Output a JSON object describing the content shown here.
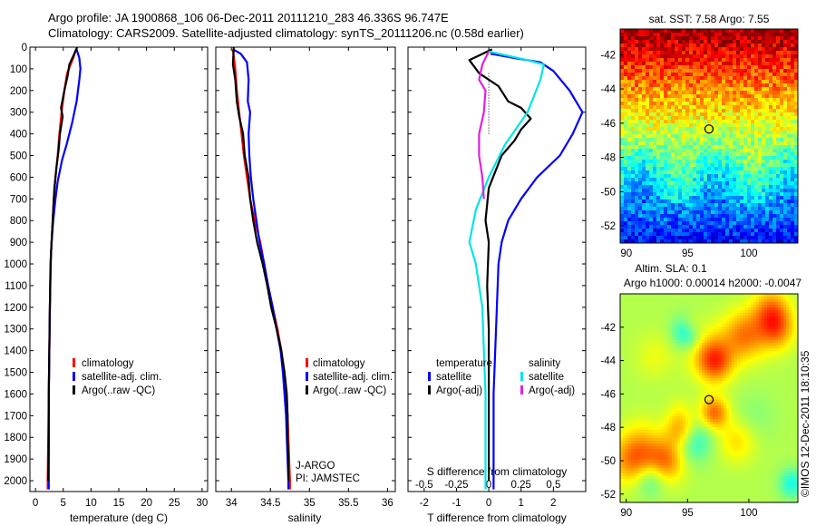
{
  "title_line1": "Argo profile: JA 1900868_106 06-Dec-2011 20111210_283 46.336S 96.747E",
  "title_line2": "Climatology: CARS2009. Satellite-adjusted climatology: synTS_20111206.nc (0.58d earlier)",
  "credit": "©IMOS 12-Dec-2011 18:10:35",
  "colors": {
    "climatology": "#ff0000",
    "satellite": "#0000ff",
    "argo": "#000000",
    "sal_satellite": "#00e5e5",
    "sal_argo": "#e020e0"
  },
  "chart_data": [
    {
      "type": "line",
      "name": "temperature-profile",
      "xlabel": "temperature (deg C)",
      "xlim": [
        -1,
        31
      ],
      "ylim": [
        0,
        2050
      ],
      "y_reversed": true,
      "xticks": [
        0,
        5,
        10,
        15,
        20,
        25,
        30
      ],
      "yticks": [
        0,
        100,
        200,
        300,
        400,
        500,
        600,
        700,
        800,
        900,
        1000,
        1100,
        1200,
        1300,
        1400,
        1500,
        1600,
        1700,
        1800,
        1900,
        2000
      ],
      "legend": [
        "climatology",
        "satellite-adj. clim.",
        "Argo(..raw -QC)"
      ],
      "series": [
        {
          "name": "climatology",
          "color": "#ff0000",
          "points": [
            [
              7.3,
              10
            ],
            [
              6.8,
              50
            ],
            [
              5.7,
              120
            ],
            [
              5.2,
              200
            ],
            [
              4.7,
              300
            ],
            [
              4.3,
              400
            ],
            [
              4.0,
              500
            ],
            [
              3.6,
              600
            ],
            [
              3.3,
              700
            ],
            [
              3.1,
              800
            ],
            [
              2.9,
              900
            ],
            [
              2.7,
              1000
            ],
            [
              2.6,
              1200
            ],
            [
              2.5,
              1400
            ],
            [
              2.4,
              1600
            ],
            [
              2.3,
              1800
            ],
            [
              2.2,
              2000
            ],
            [
              2.2,
              2040
            ]
          ]
        },
        {
          "name": "satellite-adj. clim.",
          "color": "#0000ff",
          "points": [
            [
              7.4,
              10
            ],
            [
              7.9,
              50
            ],
            [
              8.1,
              100
            ],
            [
              7.9,
              150
            ],
            [
              7.4,
              250
            ],
            [
              6.6,
              350
            ],
            [
              5.6,
              450
            ],
            [
              4.8,
              520
            ],
            [
              4.0,
              620
            ],
            [
              3.6,
              700
            ],
            [
              3.2,
              800
            ],
            [
              2.9,
              900
            ],
            [
              2.7,
              1000
            ],
            [
              2.6,
              1200
            ],
            [
              2.5,
              1400
            ],
            [
              2.4,
              1600
            ],
            [
              2.4,
              1800
            ],
            [
              2.4,
              2000
            ],
            [
              2.4,
              2040
            ]
          ]
        },
        {
          "name": "Argo(..raw -QC)",
          "color": "#000000",
          "points": [
            [
              7.5,
              0
            ],
            [
              7.0,
              30
            ],
            [
              6.1,
              80
            ],
            [
              5.8,
              130
            ],
            [
              5.2,
              200
            ],
            [
              4.6,
              280
            ],
            [
              4.9,
              320
            ],
            [
              4.4,
              400
            ],
            [
              4.2,
              470
            ],
            [
              3.8,
              550
            ],
            [
              3.4,
              650
            ],
            [
              3.2,
              750
            ],
            [
              3.0,
              850
            ],
            [
              2.8,
              950
            ],
            [
              2.7,
              1050
            ],
            [
              2.6,
              1200
            ],
            [
              2.5,
              1400
            ],
            [
              2.4,
              1600
            ],
            [
              2.4,
              1800
            ],
            [
              2.3,
              2000
            ]
          ]
        }
      ]
    },
    {
      "type": "line",
      "name": "salinity-profile",
      "xlabel": "salinity",
      "xlim": [
        33.8,
        36.1
      ],
      "ylim": [
        0,
        2050
      ],
      "y_reversed": true,
      "xticks": [
        34,
        34.5,
        35,
        35.5,
        36
      ],
      "legend": [
        "climatology",
        "satellite-adj. clim.",
        "Argo(..raw -QC)"
      ],
      "annotation": [
        "J-ARGO",
        "PI: JAMSTEC"
      ],
      "series": [
        {
          "name": "climatology",
          "color": "#ff0000",
          "points": [
            [
              34.02,
              10
            ],
            [
              34.05,
              100
            ],
            [
              34.07,
              200
            ],
            [
              34.1,
              300
            ],
            [
              34.13,
              400
            ],
            [
              34.16,
              500
            ],
            [
              34.2,
              600
            ],
            [
              34.24,
              700
            ],
            [
              34.3,
              800
            ],
            [
              34.37,
              900
            ],
            [
              34.42,
              1000
            ],
            [
              34.47,
              1100
            ],
            [
              34.53,
              1200
            ],
            [
              34.59,
              1300
            ],
            [
              34.64,
              1400
            ],
            [
              34.67,
              1500
            ],
            [
              34.7,
              1600
            ],
            [
              34.72,
              1700
            ],
            [
              34.73,
              1800
            ],
            [
              34.74,
              1900
            ],
            [
              34.75,
              2000
            ],
            [
              34.75,
              2040
            ]
          ]
        },
        {
          "name": "satellite-adj. clim.",
          "color": "#0000ff",
          "points": [
            [
              34.02,
              10
            ],
            [
              34.12,
              30
            ],
            [
              34.2,
              70
            ],
            [
              34.22,
              150
            ],
            [
              34.21,
              250
            ],
            [
              34.24,
              300
            ],
            [
              34.22,
              400
            ],
            [
              34.23,
              500
            ],
            [
              34.25,
              600
            ],
            [
              34.28,
              700
            ],
            [
              34.32,
              800
            ],
            [
              34.36,
              900
            ],
            [
              34.42,
              1000
            ],
            [
              34.47,
              1100
            ],
            [
              34.53,
              1200
            ],
            [
              34.58,
              1300
            ],
            [
              34.63,
              1400
            ],
            [
              34.66,
              1500
            ],
            [
              34.68,
              1600
            ],
            [
              34.7,
              1700
            ],
            [
              34.71,
              1800
            ],
            [
              34.72,
              1900
            ],
            [
              34.73,
              2000
            ],
            [
              34.73,
              2040
            ]
          ]
        },
        {
          "name": "Argo(..raw -QC)",
          "color": "#000000",
          "points": [
            [
              34.03,
              0
            ],
            [
              34.02,
              80
            ],
            [
              34.05,
              150
            ],
            [
              34.07,
              250
            ],
            [
              34.1,
              320
            ],
            [
              34.15,
              400
            ],
            [
              34.17,
              500
            ],
            [
              34.22,
              600
            ],
            [
              34.24,
              700
            ],
            [
              34.28,
              800
            ],
            [
              34.33,
              900
            ],
            [
              34.4,
              1000
            ],
            [
              34.46,
              1100
            ],
            [
              34.51,
              1200
            ],
            [
              34.58,
              1300
            ],
            [
              34.64,
              1400
            ],
            [
              34.68,
              1500
            ],
            [
              34.71,
              1600
            ],
            [
              34.72,
              1700
            ],
            [
              34.72,
              1800
            ],
            [
              34.73,
              1900
            ],
            [
              34.73,
              2000
            ]
          ]
        }
      ]
    },
    {
      "type": "line",
      "name": "difference-profile",
      "xlabel": "T difference from climatology",
      "xlabel_top": "S difference from climatology",
      "xlim": [
        -2.5,
        3
      ],
      "ylim": [
        0,
        2050
      ],
      "y_reversed": true,
      "xticks": [
        -2,
        -1,
        0,
        1,
        2
      ],
      "xticks_s": [
        {
          "v": -0.5,
          "label": "-0.5"
        },
        {
          "v": -0.25,
          "label": "-0.25"
        },
        {
          "v": 0,
          "label": "0"
        },
        {
          "v": 0.25,
          "label": "0.25"
        },
        {
          "v": 0.5,
          "label": "0.5"
        }
      ],
      "s_scale": 4,
      "legend_left_title": "temperature",
      "legend_right_title": "salinity",
      "legend_left": [
        "satellite",
        "Argo(-adj)"
      ],
      "legend_right": [
        "satellite",
        "Argo(-adj)"
      ],
      "series": [
        {
          "name": "T satellite",
          "color": "#0000ff",
          "points": [
            [
              0.05,
              30
            ],
            [
              0.8,
              50
            ],
            [
              1.6,
              70
            ],
            [
              2.0,
              110
            ],
            [
              2.5,
              200
            ],
            [
              2.9,
              300
            ],
            [
              2.6,
              400
            ],
            [
              2.2,
              500
            ],
            [
              1.5,
              600
            ],
            [
              1.0,
              700
            ],
            [
              0.6,
              800
            ],
            [
              0.4,
              900
            ],
            [
              0.3,
              1000
            ],
            [
              0.25,
              1200
            ],
            [
              0.2,
              1400
            ],
            [
              0.15,
              1600
            ],
            [
              0.15,
              1800
            ],
            [
              0.15,
              2000
            ],
            [
              0.15,
              2040
            ]
          ]
        },
        {
          "name": "T Argo(-adj)",
          "color": "#000000",
          "points": [
            [
              0.1,
              10
            ],
            [
              -0.6,
              60
            ],
            [
              -0.3,
              120
            ],
            [
              0.3,
              180
            ],
            [
              0.6,
              250
            ],
            [
              1.0,
              280
            ],
            [
              1.3,
              330
            ],
            [
              1.0,
              380
            ],
            [
              0.8,
              430
            ],
            [
              0.4,
              500
            ],
            [
              0.0,
              650
            ],
            [
              -0.1,
              800
            ],
            [
              0.0,
              900
            ],
            [
              -0.05,
              1100
            ],
            [
              0.0,
              1300
            ],
            [
              0.0,
              1500
            ],
            [
              0.0,
              1700
            ],
            [
              0.0,
              1900
            ],
            [
              0.0,
              2000
            ]
          ]
        },
        {
          "name": "S satellite",
          "color": "#00e5e5",
          "points": [
            [
              0.0,
              20
            ],
            [
              1.2,
              60
            ],
            [
              1.7,
              80
            ],
            [
              1.6,
              150
            ],
            [
              1.2,
              300
            ],
            [
              0.5,
              450
            ],
            [
              0.0,
              600
            ],
            [
              -0.4,
              750
            ],
            [
              -0.6,
              900
            ],
            [
              -0.4,
              1000
            ],
            [
              -0.3,
              1100
            ],
            [
              -0.2,
              1200
            ],
            [
              -0.15,
              1400
            ],
            [
              -0.1,
              1600
            ],
            [
              -0.1,
              1800
            ],
            [
              -0.1,
              2000
            ],
            [
              -0.1,
              2040
            ]
          ]
        },
        {
          "name": "S Argo(-adj)",
          "color": "#e020e0",
          "points": [
            [
              0.0,
              20
            ],
            [
              -0.2,
              80
            ],
            [
              -0.3,
              150
            ],
            [
              -0.1,
              200
            ],
            [
              -0.15,
              300
            ],
            [
              -0.3,
              400
            ],
            [
              -0.3,
              500
            ],
            [
              -0.2,
              600
            ],
            [
              -0.15,
              700
            ]
          ]
        }
      ]
    },
    {
      "type": "heatmap",
      "name": "sst-map",
      "title": "sat. SST: 7.58 Argo: 7.55",
      "xlim": [
        89.5,
        104
      ],
      "ylim": [
        -53,
        -40.5
      ],
      "xticks": [
        90,
        95,
        100
      ],
      "yticks": [
        -42,
        -44,
        -46,
        -48,
        -50,
        -52
      ],
      "float_position": [
        96.75,
        -46.34
      ]
    },
    {
      "type": "heatmap",
      "name": "sla-map",
      "title_line1": "Altim. SLA: 0.1",
      "title_line2": "Argo h1000: 0.00014 h2000: -0.0047",
      "xlim": [
        89.5,
        104
      ],
      "ylim": [
        -52.5,
        -40
      ],
      "xticks": [
        90,
        95,
        100
      ],
      "yticks": [
        -42,
        -44,
        -46,
        -48,
        -50,
        -52
      ],
      "float_position": [
        96.75,
        -46.34
      ]
    }
  ]
}
